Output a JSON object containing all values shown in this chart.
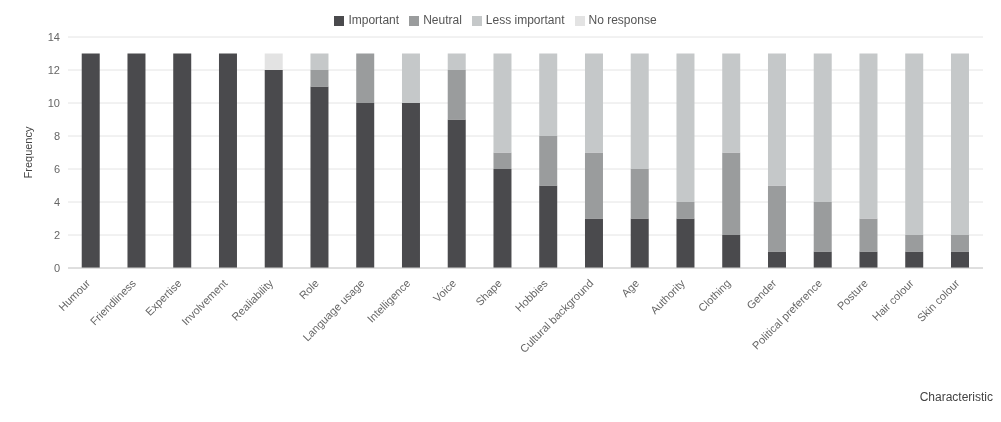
{
  "chart_data": {
    "type": "bar",
    "stacked": true,
    "xlabel": "Characteristic",
    "ylabel": "Frequency",
    "categories": [
      "Humour",
      "Friendliness",
      "Expertise",
      "Involvement",
      "Realiability",
      "Role",
      "Language usage",
      "Intelligence",
      "Voice",
      "Shape",
      "Hobbies",
      "Cultural background",
      "Age",
      "Authority",
      "Clothing",
      "Gender",
      "Political preference",
      "Posture",
      "Hair colour",
      "Skin colour"
    ],
    "series": [
      {
        "name": "Important",
        "color": "#4a4a4d",
        "values": [
          13,
          13,
          13,
          13,
          12,
          11,
          10,
          10,
          9,
          6,
          5,
          3,
          3,
          3,
          2,
          1,
          1,
          1,
          1,
          1
        ]
      },
      {
        "name": "Neutral",
        "color": "#9a9c9d",
        "values": [
          0,
          0,
          0,
          0,
          0,
          1,
          3,
          0,
          3,
          1,
          3,
          4,
          3,
          1,
          5,
          4,
          3,
          2,
          1,
          1
        ]
      },
      {
        "name": "Less important",
        "color": "#c5c8c9",
        "values": [
          0,
          0,
          0,
          0,
          0,
          1,
          0,
          3,
          1,
          6,
          5,
          6,
          7,
          9,
          6,
          8,
          9,
          10,
          11,
          11
        ]
      },
      {
        "name": "No response",
        "color": "#e3e3e3",
        "values": [
          0,
          0,
          0,
          0,
          1,
          0,
          0,
          0,
          0,
          0,
          0,
          0,
          0,
          0,
          0,
          0,
          0,
          0,
          0,
          0
        ]
      }
    ],
    "ylim": [
      0,
      14
    ],
    "yticks": [
      0,
      2,
      4,
      6,
      8,
      10,
      12,
      14
    ],
    "grid": "y",
    "legend": "top"
  }
}
